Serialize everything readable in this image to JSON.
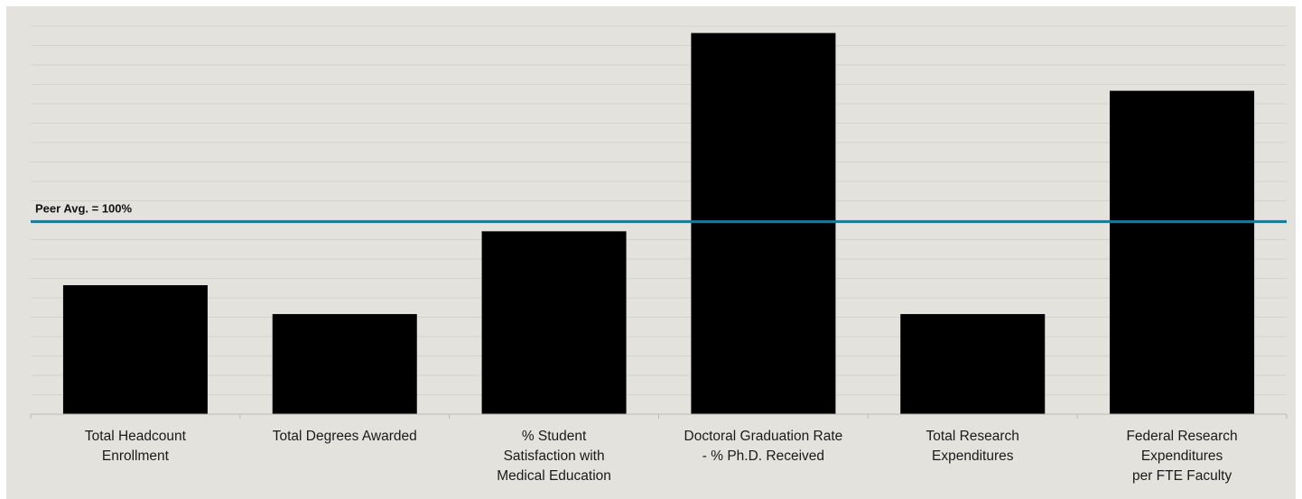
{
  "chart_data": {
    "type": "bar",
    "title": "",
    "xlabel": "",
    "ylabel": "",
    "categories": [
      [
        "Total Headcount",
        "Enrollment"
      ],
      [
        "Total Degrees Awarded"
      ],
      [
        "% Student",
        "Satisfaction with",
        "Medical Education"
      ],
      [
        "Doctoral Graduation Rate",
        "- % Ph.D. Received"
      ],
      [
        "Total Research",
        "Expenditures"
      ],
      [
        "Federal Research",
        "Expenditures",
        "per FTE Faculty"
      ]
    ],
    "values": [
      67,
      52,
      95,
      198,
      52,
      168
    ],
    "ylim": [
      0,
      210
    ],
    "grid": true,
    "bar_color": "#000000",
    "reference_line": {
      "value": 100,
      "label": "Peer Avg.  = 100%",
      "color": "#1b7a93"
    }
  }
}
